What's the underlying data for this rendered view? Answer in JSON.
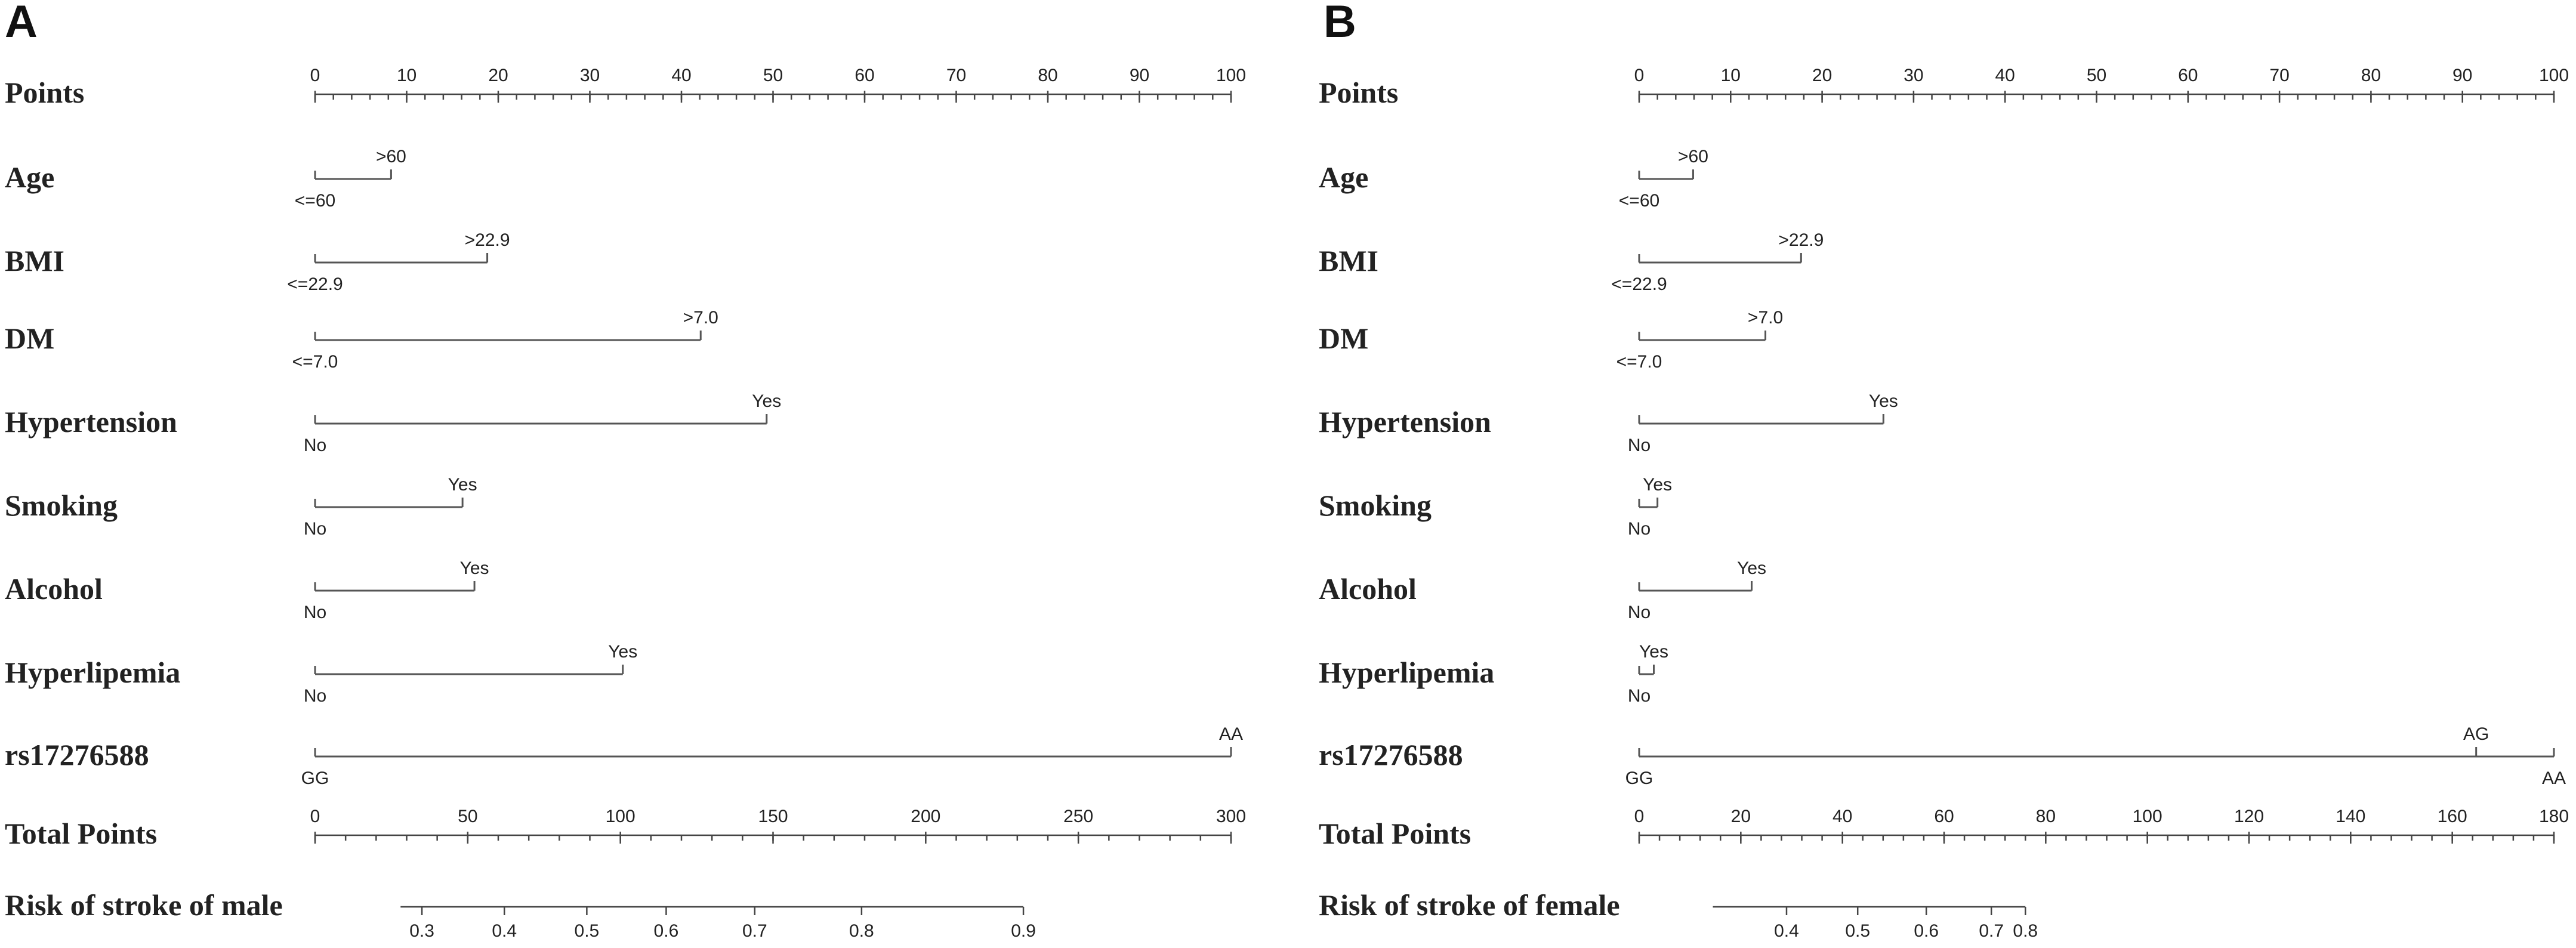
{
  "colors": {
    "ink": "#222222",
    "line": "#555555",
    "background": "#ffffff"
  },
  "chart_data": [
    {
      "type": "nomogram",
      "panel": "A",
      "points_axis": {
        "label": "Points",
        "min": 0,
        "max": 100,
        "major_ticks": [
          0,
          10,
          20,
          30,
          40,
          50,
          60,
          70,
          80,
          90,
          100
        ],
        "minor_step": 2
      },
      "variables": [
        {
          "label": "Age",
          "levels": [
            {
              "name": "<=60",
              "points": 0
            },
            {
              "name": ">60",
              "points": 8.3
            }
          ]
        },
        {
          "label": "BMI",
          "levels": [
            {
              "name": "<=22.9",
              "points": 0
            },
            {
              "name": ">22.9",
              "points": 18.8
            }
          ]
        },
        {
          "label": "DM",
          "levels": [
            {
              "name": "<=7.0",
              "points": 0
            },
            {
              "name": ">7.0",
              "points": 42.1
            }
          ]
        },
        {
          "label": "Hypertension",
          "levels": [
            {
              "name": "No",
              "points": 0
            },
            {
              "name": "Yes",
              "points": 49.3
            }
          ]
        },
        {
          "label": "Smoking",
          "levels": [
            {
              "name": "No",
              "points": 0
            },
            {
              "name": "Yes",
              "points": 16.1
            }
          ]
        },
        {
          "label": "Alcohol",
          "levels": [
            {
              "name": "No",
              "points": 0
            },
            {
              "name": "Yes",
              "points": 17.4
            }
          ]
        },
        {
          "label": "Hyperlipemia",
          "levels": [
            {
              "name": "No",
              "points": 0
            },
            {
              "name": "Yes",
              "points": 33.6
            }
          ]
        },
        {
          "label": "rs17276588",
          "levels": [
            {
              "name": "GG",
              "points": 0
            },
            {
              "name": "AA",
              "points": 100
            }
          ]
        }
      ],
      "total_axis": {
        "label": "Total Points",
        "min": 0,
        "max": 300,
        "major_ticks": [
          0,
          50,
          100,
          150,
          200,
          250,
          300
        ],
        "minor_step": 10
      },
      "risk_axis": {
        "label": "Risk of stroke of male",
        "range_total_points": [
          28,
          232
        ],
        "ticks": [
          {
            "label": "0.3",
            "total": 35
          },
          {
            "label": "0.4",
            "total": 62
          },
          {
            "label": "0.5",
            "total": 89
          },
          {
            "label": "0.6",
            "total": 115
          },
          {
            "label": "0.7",
            "total": 144
          },
          {
            "label": "0.8",
            "total": 179
          },
          {
            "label": "0.9",
            "total": 232
          }
        ]
      }
    },
    {
      "type": "nomogram",
      "panel": "B",
      "points_axis": {
        "label": "Points",
        "min": 0,
        "max": 100,
        "major_ticks": [
          0,
          10,
          20,
          30,
          40,
          50,
          60,
          70,
          80,
          90,
          100
        ],
        "minor_step": 2
      },
      "variables": [
        {
          "label": "Age",
          "levels": [
            {
              "name": "<=60",
              "points": 0
            },
            {
              "name": ">60",
              "points": 5.9
            }
          ]
        },
        {
          "label": "BMI",
          "levels": [
            {
              "name": "<=22.9",
              "points": 0
            },
            {
              "name": ">22.9",
              "points": 17.7
            }
          ]
        },
        {
          "label": "DM",
          "levels": [
            {
              "name": "<=7.0",
              "points": 0
            },
            {
              "name": ">7.0",
              "points": 13.8
            }
          ]
        },
        {
          "label": "Hypertension",
          "levels": [
            {
              "name": "No",
              "points": 0
            },
            {
              "name": "Yes",
              "points": 26.7
            }
          ]
        },
        {
          "label": "Smoking",
          "levels": [
            {
              "name": "No",
              "points": 0
            },
            {
              "name": "Yes",
              "points": 2.0
            }
          ]
        },
        {
          "label": "Alcohol",
          "levels": [
            {
              "name": "No",
              "points": 0
            },
            {
              "name": "Yes",
              "points": 12.3
            }
          ]
        },
        {
          "label": "Hyperlipemia",
          "levels": [
            {
              "name": "No",
              "points": 0
            },
            {
              "name": "Yes",
              "points": 1.6
            }
          ]
        },
        {
          "label": "rs17276588",
          "levels": [
            {
              "name": "GG",
              "points": 0
            },
            {
              "name": "AG",
              "points": 91.5
            },
            {
              "name": "AA",
              "points": 100
            }
          ]
        }
      ],
      "total_axis": {
        "label": "Total Points",
        "min": 0,
        "max": 180,
        "major_ticks": [
          0,
          20,
          40,
          60,
          80,
          100,
          120,
          140,
          160,
          180
        ],
        "minor_step": 4
      },
      "risk_axis": {
        "label": "Risk of stroke of female",
        "range_total_points": [
          14.5,
          76
        ],
        "ticks": [
          {
            "label": "0.4",
            "total": 29
          },
          {
            "label": "0.5",
            "total": 43
          },
          {
            "label": "0.6",
            "total": 56.5
          },
          {
            "label": "0.7",
            "total": 69.3
          },
          {
            "label": "0.8",
            "total": 76
          }
        ]
      }
    }
  ]
}
